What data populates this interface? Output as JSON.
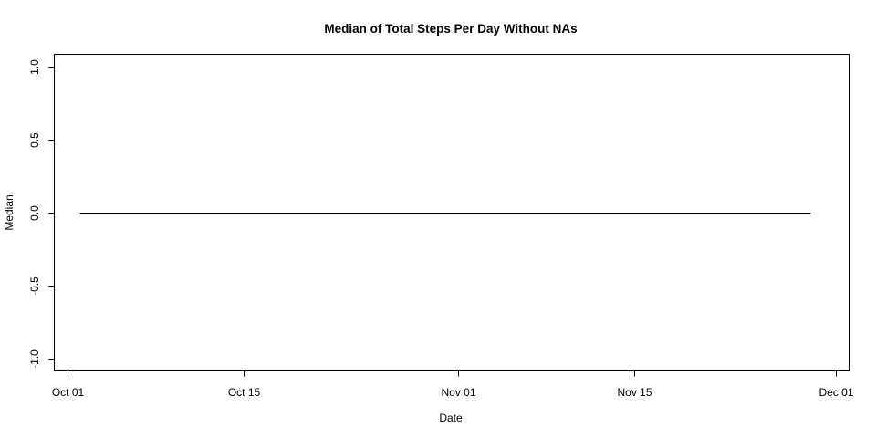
{
  "chart_data": {
    "type": "line",
    "title": "Median of Total Steps Per Day Without NAs",
    "xlabel": "Date",
    "ylabel": "Median",
    "xlim": [
      "2012-09-30",
      "2012-12-02"
    ],
    "ylim": [
      -1.08,
      1.08
    ],
    "x_ticks": [
      {
        "value": "2012-10-01",
        "label": "Oct 01"
      },
      {
        "value": "2012-10-15",
        "label": "Oct 15"
      },
      {
        "value": "2012-11-01",
        "label": "Nov 01"
      },
      {
        "value": "2012-11-15",
        "label": "Nov 15"
      },
      {
        "value": "2012-12-01",
        "label": "Dec 01"
      }
    ],
    "y_ticks": [
      {
        "value": -1.0,
        "label": "-1.0"
      },
      {
        "value": -0.5,
        "label": "-0.5"
      },
      {
        "value": 0.0,
        "label": "0.0"
      },
      {
        "value": 0.5,
        "label": "0.5"
      },
      {
        "value": 1.0,
        "label": "1.0"
      }
    ],
    "series": [
      {
        "x": [
          "2012-10-02",
          "2012-11-29"
        ],
        "y": [
          0,
          0
        ]
      }
    ],
    "grid": false,
    "legend": "none"
  }
}
